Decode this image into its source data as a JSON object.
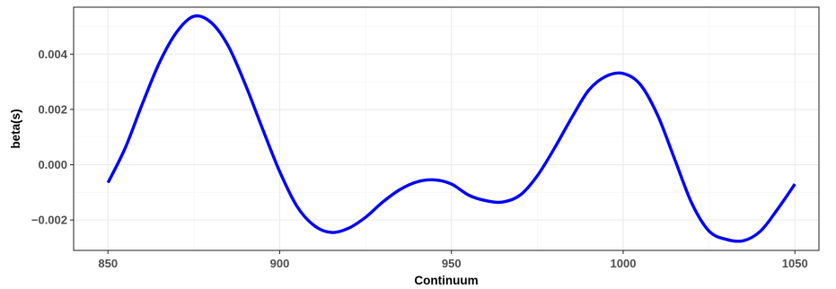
{
  "chart_data": {
    "type": "line",
    "title": "",
    "xlabel": "Continuum",
    "ylabel": "beta(s)",
    "xlim": [
      840,
      1057
    ],
    "ylim": [
      -0.0031,
      0.0057
    ],
    "xticks": [
      850,
      900,
      950,
      1000,
      1050
    ],
    "xtick_labels": [
      "850",
      "900",
      "950",
      "1000",
      "1050"
    ],
    "yticks": [
      -0.002,
      0.0,
      0.002,
      0.004
    ],
    "ytick_labels": [
      "−0.002",
      "0.000",
      "0.002",
      "0.004"
    ],
    "grid": true,
    "legend": "none",
    "series": [
      {
        "color": "#0000ff",
        "x": [
          850,
          855,
          860,
          865,
          870,
          875,
          880,
          885,
          890,
          895,
          900,
          905,
          910,
          915,
          920,
          925,
          930,
          935,
          940,
          945,
          950,
          955,
          960,
          965,
          970,
          975,
          980,
          985,
          990,
          995,
          1000,
          1005,
          1010,
          1015,
          1020,
          1025,
          1030,
          1035,
          1040,
          1045,
          1050
        ],
        "y": [
          -0.00065,
          0.0006,
          0.0022,
          0.0037,
          0.0048,
          0.00537,
          0.00515,
          0.0043,
          0.0029,
          0.0013,
          -0.00025,
          -0.0015,
          -0.0022,
          -0.00245,
          -0.0023,
          -0.0019,
          -0.00135,
          -0.0009,
          -0.00062,
          -0.00055,
          -0.0007,
          -0.0011,
          -0.0013,
          -0.00135,
          -0.0011,
          -0.0004,
          0.0006,
          0.0017,
          0.0027,
          0.0032,
          0.0033,
          0.0029,
          0.0018,
          0.0002,
          -0.0014,
          -0.0024,
          -0.0027,
          -0.00275,
          -0.0024,
          -0.0016,
          -0.0007
        ]
      }
    ]
  }
}
